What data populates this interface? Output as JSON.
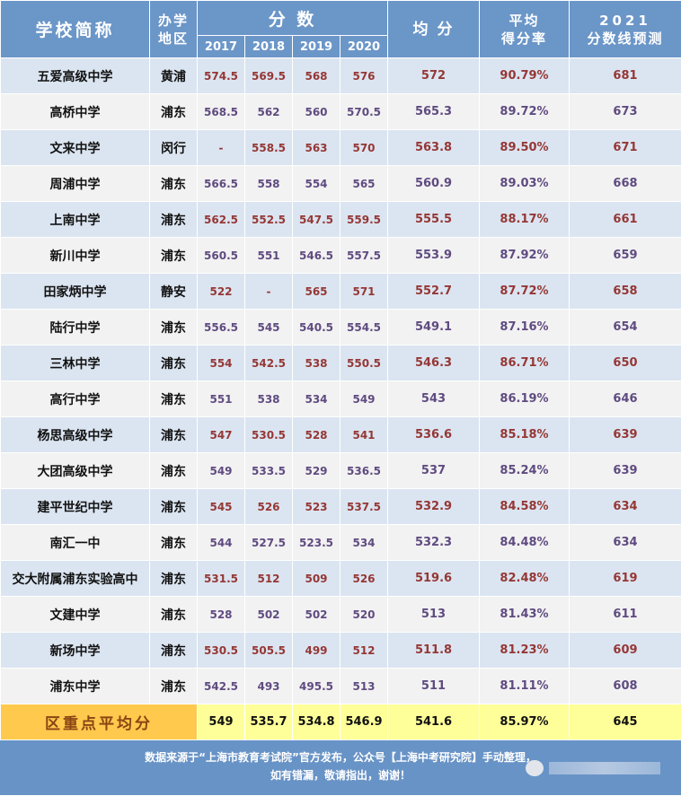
{
  "header": {
    "school": "学校简称",
    "district_line1": "办学",
    "district_line2": "地区",
    "scores": "分 数",
    "years": [
      "2017",
      "2018",
      "2019",
      "2020"
    ],
    "average": "均 分",
    "rate_line1": "平均",
    "rate_line2": "得分率",
    "predict_line1": "2021",
    "predict_line2": "分数线预测"
  },
  "colors": {
    "header_bg": "#6b96c8",
    "row_odd": "#dbe5f1",
    "row_even": "#f2f2f2",
    "value_red": "#953735",
    "value_purple": "#5f4b80",
    "avg_label_bg": "#ffc94d",
    "avg_row_bg": "#ffff99",
    "footer_bg": "#6893c6"
  },
  "rows": [
    {
      "name": "五爱高级中学",
      "district": "黄浦",
      "s": [
        "574.5",
        "569.5",
        "568",
        "576"
      ],
      "avg": "572",
      "rate": "90.79%",
      "pred": "681"
    },
    {
      "name": "高桥中学",
      "district": "浦东",
      "s": [
        "568.5",
        "562",
        "560",
        "570.5"
      ],
      "avg": "565.3",
      "rate": "89.72%",
      "pred": "673"
    },
    {
      "name": "文来中学",
      "district": "闵行",
      "s": [
        "-",
        "558.5",
        "563",
        "570"
      ],
      "avg": "563.8",
      "rate": "89.50%",
      "pred": "671"
    },
    {
      "name": "周浦中学",
      "district": "浦东",
      "s": [
        "566.5",
        "558",
        "554",
        "565"
      ],
      "avg": "560.9",
      "rate": "89.03%",
      "pred": "668"
    },
    {
      "name": "上南中学",
      "district": "浦东",
      "s": [
        "562.5",
        "552.5",
        "547.5",
        "559.5"
      ],
      "avg": "555.5",
      "rate": "88.17%",
      "pred": "661"
    },
    {
      "name": "新川中学",
      "district": "浦东",
      "s": [
        "560.5",
        "551",
        "546.5",
        "557.5"
      ],
      "avg": "553.9",
      "rate": "87.92%",
      "pred": "659"
    },
    {
      "name": "田家炳中学",
      "district": "静安",
      "s": [
        "522",
        "-",
        "565",
        "571"
      ],
      "avg": "552.7",
      "rate": "87.72%",
      "pred": "658"
    },
    {
      "name": "陆行中学",
      "district": "浦东",
      "s": [
        "556.5",
        "545",
        "540.5",
        "554.5"
      ],
      "avg": "549.1",
      "rate": "87.16%",
      "pred": "654"
    },
    {
      "name": "三林中学",
      "district": "浦东",
      "s": [
        "554",
        "542.5",
        "538",
        "550.5"
      ],
      "avg": "546.3",
      "rate": "86.71%",
      "pred": "650"
    },
    {
      "name": "高行中学",
      "district": "浦东",
      "s": [
        "551",
        "538",
        "534",
        "549"
      ],
      "avg": "543",
      "rate": "86.19%",
      "pred": "646"
    },
    {
      "name": "杨思高级中学",
      "district": "浦东",
      "s": [
        "547",
        "530.5",
        "528",
        "541"
      ],
      "avg": "536.6",
      "rate": "85.18%",
      "pred": "639"
    },
    {
      "name": "大团高级中学",
      "district": "浦东",
      "s": [
        "549",
        "533.5",
        "529",
        "536.5"
      ],
      "avg": "537",
      "rate": "85.24%",
      "pred": "639"
    },
    {
      "name": "建平世纪中学",
      "district": "浦东",
      "s": [
        "545",
        "526",
        "523",
        "537.5"
      ],
      "avg": "532.9",
      "rate": "84.58%",
      "pred": "634"
    },
    {
      "name": "南汇一中",
      "district": "浦东",
      "s": [
        "544",
        "527.5",
        "523.5",
        "534"
      ],
      "avg": "532.3",
      "rate": "84.48%",
      "pred": "634"
    },
    {
      "name": "交大附属浦东实验高中",
      "district": "浦东",
      "s": [
        "531.5",
        "512",
        "509",
        "526"
      ],
      "avg": "519.6",
      "rate": "82.48%",
      "pred": "619"
    },
    {
      "name": "文建中学",
      "district": "浦东",
      "s": [
        "528",
        "502",
        "502",
        "520"
      ],
      "avg": "513",
      "rate": "81.43%",
      "pred": "611"
    },
    {
      "name": "新场中学",
      "district": "浦东",
      "s": [
        "530.5",
        "505.5",
        "499",
        "512"
      ],
      "avg": "511.8",
      "rate": "81.23%",
      "pred": "609"
    },
    {
      "name": "浦东中学",
      "district": "浦东",
      "s": [
        "542.5",
        "493",
        "495.5",
        "513"
      ],
      "avg": "511",
      "rate": "81.11%",
      "pred": "608"
    }
  ],
  "summary": {
    "label": "区重点平均分",
    "s": [
      "549",
      "535.7",
      "534.8",
      "546.9"
    ],
    "avg": "541.6",
    "rate": "85.97%",
    "pred": "645"
  },
  "footer": {
    "line1": "数据来源于“上海市教育考试院”官方发布，公众号【上海中考研究院】手动整理，",
    "line2": "如有错漏，敬请指出，谢谢！",
    "watermark_icon": "wechat-icon"
  }
}
